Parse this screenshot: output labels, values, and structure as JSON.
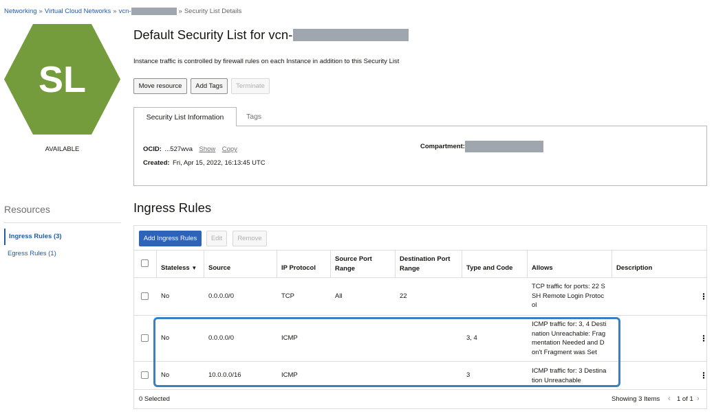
{
  "breadcrumb": {
    "items": [
      "Networking",
      "Virtual Cloud Networks",
      "vcn-"
    ],
    "current": "Security List Details",
    "separator": "»"
  },
  "resource": {
    "initials": "SL",
    "status": "AVAILABLE",
    "hex_color": "#759c3c"
  },
  "header": {
    "title_prefix": "Default Security List for vcn-",
    "description": "Instance traffic is controlled by firewall rules on each Instance in addition to this Security List"
  },
  "actions": {
    "move": "Move resource",
    "tags": "Add Tags",
    "terminate": "Terminate"
  },
  "tabs": {
    "info": "Security List Information",
    "tags": "Tags"
  },
  "info": {
    "ocid_label": "OCID:",
    "ocid_value": "...527wva",
    "show": "Show",
    "copy": "Copy",
    "created_label": "Created:",
    "created_value": "Fri, Apr 15, 2022, 16:13:45 UTC",
    "compartment_label": "Compartment:"
  },
  "sidebar": {
    "title": "Resources",
    "items": [
      {
        "label": "Ingress Rules (3)",
        "active": true
      },
      {
        "label": "Egress Rules (1)",
        "active": false
      }
    ]
  },
  "ingress": {
    "title": "Ingress Rules",
    "add_button": "Add Ingress Rules",
    "edit_button": "Edit",
    "remove_button": "Remove",
    "columns": {
      "stateless": "Stateless",
      "source": "Source",
      "protocol": "IP Protocol",
      "src_port_1": "Source Port",
      "src_port_2": "Range",
      "dst_port_1": "Destination Port",
      "dst_port_2": "Range",
      "type_code": "Type and Code",
      "allows": "Allows",
      "description": "Description"
    },
    "rows": [
      {
        "stateless": "No",
        "source": "0.0.0.0/0",
        "protocol": "TCP",
        "src_port": "All",
        "dst_port": "22",
        "type_code": "",
        "allows": [
          "TCP traffic for ports: 22 S",
          "SH Remote Login Protoc",
          "ol"
        ]
      },
      {
        "stateless": "No",
        "source": "0.0.0.0/0",
        "protocol": "ICMP",
        "src_port": "",
        "dst_port": "",
        "type_code": "3, 4",
        "allows": [
          "ICMP traffic for: 3, 4 Desti",
          "nation Unreachable: Frag",
          "mentation Needed and D",
          "on't Fragment was Set"
        ]
      },
      {
        "stateless": "No",
        "source": "10.0.0.0/16",
        "protocol": "ICMP",
        "src_port": "",
        "dst_port": "",
        "type_code": "3",
        "allows": [
          "ICMP traffic for: 3 Destina",
          "tion Unreachable"
        ]
      }
    ],
    "footer": {
      "selected": "0 Selected",
      "showing": "Showing 3 Items",
      "pages": "1 of 1"
    }
  },
  "colors": {
    "link": "#1f5ca8",
    "primary_button": "#2d63b8",
    "highlight": "#3a7fc1",
    "redaction": "#9fa6ad"
  }
}
